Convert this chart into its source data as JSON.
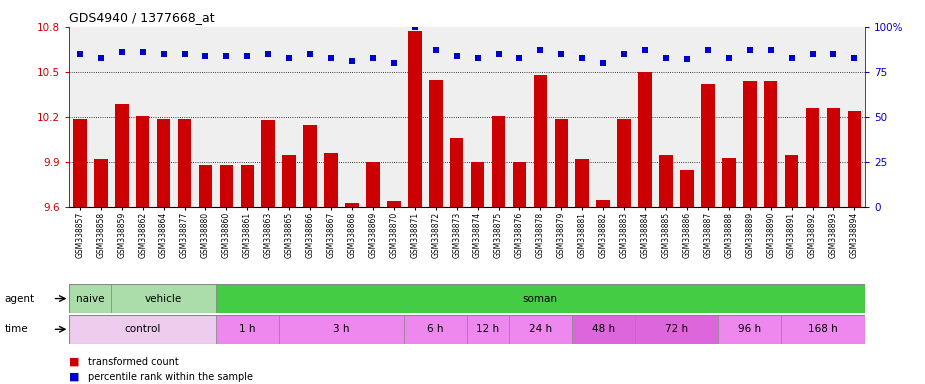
{
  "title": "GDS4940 / 1377668_at",
  "samples": [
    "GSM338857",
    "GSM338858",
    "GSM338859",
    "GSM338862",
    "GSM338864",
    "GSM338877",
    "GSM338880",
    "GSM338860",
    "GSM338861",
    "GSM338863",
    "GSM338865",
    "GSM338866",
    "GSM338867",
    "GSM338868",
    "GSM338869",
    "GSM338870",
    "GSM338871",
    "GSM338872",
    "GSM338873",
    "GSM338874",
    "GSM338875",
    "GSM338876",
    "GSM338878",
    "GSM338879",
    "GSM338881",
    "GSM338882",
    "GSM338883",
    "GSM338884",
    "GSM338885",
    "GSM338886",
    "GSM338887",
    "GSM338888",
    "GSM338889",
    "GSM338890",
    "GSM338891",
    "GSM338892",
    "GSM338893",
    "GSM338894"
  ],
  "bar_values": [
    10.19,
    9.92,
    10.29,
    10.21,
    10.19,
    10.19,
    9.88,
    9.88,
    9.88,
    10.18,
    9.95,
    10.15,
    9.96,
    9.63,
    9.9,
    9.64,
    10.77,
    10.45,
    10.06,
    9.9,
    10.21,
    9.9,
    10.48,
    10.19,
    9.92,
    9.65,
    10.19,
    10.5,
    9.95,
    9.85,
    10.42,
    9.93,
    10.44,
    10.44,
    9.95,
    10.26,
    10.26,
    10.24
  ],
  "percentile_values": [
    85,
    83,
    86,
    86,
    85,
    85,
    84,
    84,
    84,
    85,
    83,
    85,
    83,
    81,
    83,
    80,
    100,
    87,
    84,
    83,
    85,
    83,
    87,
    85,
    83,
    80,
    85,
    87,
    83,
    82,
    87,
    83,
    87,
    87,
    83,
    85,
    85,
    83
  ],
  "ylim_left": [
    9.6,
    10.8
  ],
  "ylim_right": [
    0,
    100
  ],
  "yticks_left": [
    9.6,
    9.9,
    10.2,
    10.5,
    10.8
  ],
  "yticks_right": [
    0,
    25,
    50,
    75,
    100
  ],
  "bar_color": "#cc0000",
  "dot_color": "#0000cc",
  "bg_color": "#efefef",
  "agent_groups": [
    {
      "label": "naive",
      "start": 0,
      "end": 2,
      "color": "#aaddaa"
    },
    {
      "label": "vehicle",
      "start": 2,
      "end": 7,
      "color": "#aaddaa"
    },
    {
      "label": "soman",
      "start": 7,
      "end": 38,
      "color": "#44cc44"
    }
  ],
  "time_groups": [
    {
      "label": "control",
      "start": 0,
      "end": 7,
      "color": "#eeccee"
    },
    {
      "label": "1 h",
      "start": 7,
      "end": 10,
      "color": "#ee88ee"
    },
    {
      "label": "3 h",
      "start": 10,
      "end": 16,
      "color": "#ee88ee"
    },
    {
      "label": "6 h",
      "start": 16,
      "end": 19,
      "color": "#ee88ee"
    },
    {
      "label": "12 h",
      "start": 19,
      "end": 21,
      "color": "#ee88ee"
    },
    {
      "label": "24 h",
      "start": 21,
      "end": 24,
      "color": "#ee88ee"
    },
    {
      "label": "48 h",
      "start": 24,
      "end": 27,
      "color": "#dd66dd"
    },
    {
      "label": "72 h",
      "start": 27,
      "end": 31,
      "color": "#dd66dd"
    },
    {
      "label": "96 h",
      "start": 31,
      "end": 34,
      "color": "#ee88ee"
    },
    {
      "label": "168 h",
      "start": 34,
      "end": 38,
      "color": "#ee88ee"
    }
  ],
  "grid_lines": [
    9.9,
    10.2,
    10.5
  ]
}
